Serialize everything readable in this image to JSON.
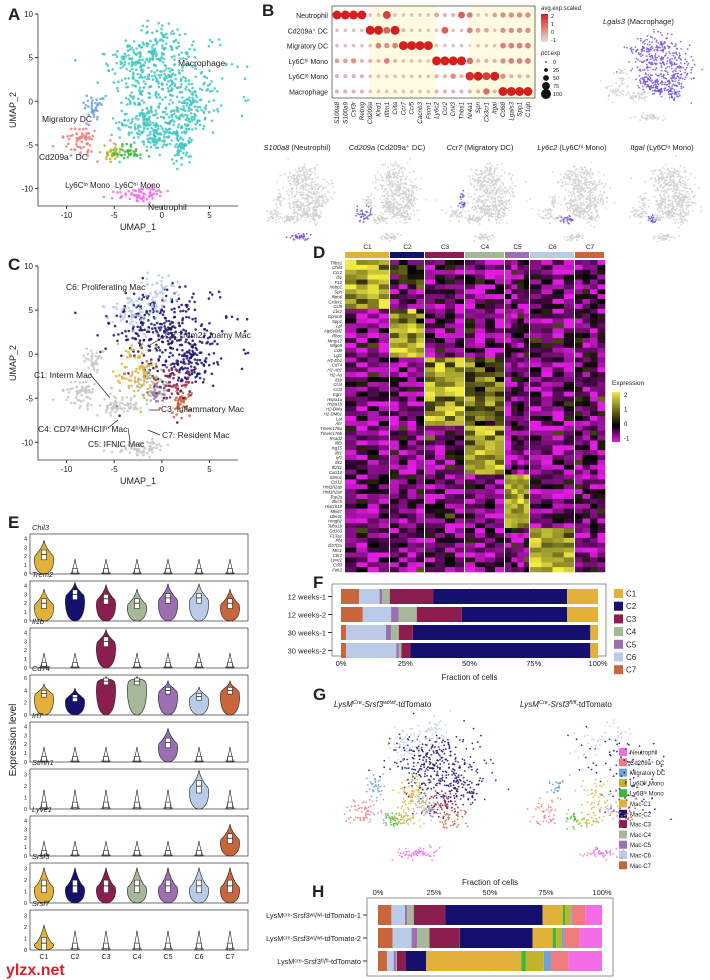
{
  "panel_letters": {
    "A": "A",
    "B": "B",
    "C": "C",
    "D": "D",
    "E": "E",
    "F": "F",
    "G": "G",
    "H": "H"
  },
  "panel_a": {
    "xlabel": "UMAP_1",
    "ylabel": "UMAP_2",
    "xticks": [
      "-10",
      "-5",
      "0",
      "5"
    ],
    "yticks": [
      "10",
      "5",
      "0",
      "-5",
      "-10"
    ],
    "labels": {
      "macrophage": "Macrophage",
      "migratory_dc": "Migratory DC",
      "cd209a_dc": "Cd209a⁺ DC",
      "ly6c_lo": "Ly6Cˡᵒ Mono",
      "ly6c_hi": "Ly6Cʰⁱ Mono",
      "neutrophil": "Neutrophil"
    }
  },
  "panel_b": {
    "rows": [
      "Neutrophil",
      "Cd209a⁺ DC",
      "Migratory DC",
      "Ly6Cʰⁱ Mono",
      "Ly6Cˡᵒ Mono",
      "Macrophage"
    ],
    "genes": [
      "S100a8",
      "S100a9",
      "Csf3r",
      "Retnlg",
      "Cd209a",
      "Klrd1",
      "Ifitm1",
      "Ciita",
      "Ccr7",
      "Ccl5",
      "Cacnb3",
      "Fscn1",
      "Ly6c2",
      "Ccr2",
      "Chil3",
      "Thbs1",
      "Nr4a1",
      "Spn",
      "Cx3cr1",
      "Itgal",
      "Cd68",
      "Lgals3",
      "Spp1",
      "C1qb"
    ],
    "avg_exp_scaled": [
      [
        2,
        2,
        2,
        2,
        -0.5,
        -0.5,
        1.5,
        -0.5,
        -0.5,
        -0.5,
        -0.5,
        -0.5,
        0,
        -0.3,
        -0.3,
        1,
        0.5,
        -0.5,
        -0.5,
        0,
        0.3,
        0.3,
        0.3,
        0.3
      ],
      [
        -0.5,
        -0.5,
        -0.5,
        -0.5,
        2,
        2,
        1,
        2,
        -0.3,
        -0.5,
        -0.5,
        -0.5,
        -0.5,
        1,
        -0.5,
        -0.5,
        0.5,
        0,
        0,
        -0.5,
        0.3,
        0.3,
        0.3,
        0.3
      ],
      [
        -0.5,
        -0.5,
        -0.5,
        -0.5,
        -0.5,
        0.5,
        0.3,
        0.5,
        2,
        2,
        2,
        2,
        -0.5,
        -0.5,
        -0.5,
        -0.5,
        -0.8,
        -0.5,
        -0.5,
        -0.5,
        0.5,
        0.5,
        0.5,
        0.5
      ],
      [
        0,
        0,
        0.3,
        -0.3,
        -0.3,
        -0.3,
        0.5,
        -0.3,
        -0.5,
        -0.5,
        -0.5,
        -0.5,
        2,
        2,
        2,
        2,
        0.8,
        -0.3,
        -0.3,
        -0.3,
        0.3,
        0.5,
        0.5,
        0.5
      ],
      [
        -0.3,
        -0.3,
        -0.3,
        -0.3,
        -0.5,
        -0.5,
        -0.5,
        -0.5,
        -0.5,
        -0.5,
        -0.5,
        -0.5,
        -0.3,
        -0.3,
        0.3,
        -0.3,
        1.8,
        2,
        1.5,
        2,
        0.3,
        -0.3,
        -0.3,
        -0.3
      ],
      [
        -0.3,
        -0.3,
        -0.3,
        -0.3,
        -0.5,
        -0.5,
        -0.5,
        -0.5,
        -0.5,
        -0.5,
        -0.5,
        -0.5,
        -0.3,
        -0.3,
        -0.3,
        -0.3,
        -0.3,
        -0.3,
        0.8,
        -0.3,
        2,
        2,
        2,
        2
      ]
    ],
    "legend_color_title": "avg.exp.scaled",
    "legend_color_ticks": [
      "2",
      "1",
      "0",
      "-1"
    ],
    "legend_size_title": "pct.exp",
    "legend_size_ticks": [
      "0",
      "25",
      "50",
      "75",
      "100"
    ],
    "colors": {
      "low": "#e6e0dc",
      "high": "#d4201c",
      "highlight_band": "#fffbe0"
    }
  },
  "feature_plots": [
    {
      "gene": "Lgals3",
      "cell": " (Macrophage)",
      "target": "mac"
    },
    {
      "gene": "S100a8",
      "cell": " (Neutrophil)",
      "target": "neu"
    },
    {
      "gene": "Cd209a",
      "cell": " (Cd209a⁺ DC)",
      "target": "cd209"
    },
    {
      "gene": "Ccr7",
      "cell": " (Migratory DC)",
      "target": "mig"
    },
    {
      "gene": "Ly6c2",
      "cell": " (Ly6Cʰⁱ Mono)",
      "target": "hi"
    },
    {
      "gene": "Itgal",
      "cell": " (Ly6Cˡᵒ Mono)",
      "target": "lo"
    }
  ],
  "panel_c": {
    "xlabel": "UMAP_1",
    "ylabel": "UMAP_2",
    "xticks": [
      "-10",
      "-5",
      "0",
      "5"
    ],
    "yticks": [
      "10",
      "5",
      "0",
      "-5",
      "-10"
    ],
    "labels": {
      "c6": "C6: Proliferating Mac",
      "c2": "C2:Trem2⁺ foamy Mac",
      "c1": "C1: Interm Mac",
      "c3": "C3: Inflammatory Mac",
      "c4": "C4: CD74ʰⁱMHCIIʰⁱ Mac",
      "c5": "C5: IFNIC Mac",
      "c7": "C7: Resident Mac"
    }
  },
  "clusters": [
    "C1",
    "C2",
    "C3",
    "C4",
    "C5",
    "C6",
    "C7"
  ],
  "cluster_colors": {
    "C1": "#e2b13a",
    "C2": "#15106e",
    "C3": "#8b1e4f",
    "C4": "#a7b89a",
    "C5": "#9b6fb0",
    "C6": "#b9cbe9",
    "C7": "#c9653a"
  },
  "panel_d": {
    "genes": [
      "Thbs1",
      "Chil3",
      "Ccr2",
      "Ifi1",
      "F10",
      "Hebp1",
      "Spn",
      "Ifitm6",
      "Cx3cr1",
      "Ccl9",
      "Cbr2",
      "Gpnmb",
      "Spp1",
      "Lpl",
      "Atp6v0d2",
      "Rhoc",
      "Mmp12",
      "Mfge8",
      "Cd9",
      "Lgi1",
      "H2-Eb1",
      "Cd74",
      "H2-Ab1",
      "H2-Aa",
      "Il1b",
      "Ccl4",
      "Ccl3",
      "Egr1",
      "Hspa1a",
      "Hspa1b",
      "H2-DMa",
      "H2-DMb1",
      "Lat",
      "Ahr",
      "Tmem176a",
      "Tmem176b",
      "Rsad2",
      "Ifit3",
      "Isg15",
      "Ifit1",
      "Irf7",
      "Ifit2",
      "Ifi211",
      "Cxcl10",
      "Stmn1",
      "Ccl12",
      "Hist1h2ap",
      "Hist1h2ae",
      "Top2a",
      "Birc5",
      "Hist1h1b",
      "Mki67",
      "Ube2c",
      "Hmgb2",
      "Tuba1b",
      "Cd163",
      "F13a1",
      "Pf4",
      "Ifi27l2a",
      "Mrc1",
      "Cbr2",
      "Lyve1",
      "Cd5l",
      "Folr2"
    ],
    "legend_title": "Expression",
    "legend_ticks": [
      "2",
      "1",
      "0",
      "-1"
    ],
    "colors": {
      "low": "#e31ce3",
      "mid": "#000000",
      "high": "#f2ec42"
    }
  },
  "panel_e": {
    "ylabel": "Expression level",
    "genes": [
      {
        "name": "Chil3",
        "ticks": [
          "4",
          "3",
          "2",
          "1",
          "0"
        ],
        "max": 4.5,
        "levels": [
          2.2,
          0.1,
          0.1,
          0.1,
          0.1,
          0.1,
          0.1
        ]
      },
      {
        "name": "Trem2",
        "ticks": [
          "4",
          "3",
          "2",
          "1",
          "0"
        ],
        "max": 4.5,
        "levels": [
          2,
          3,
          2.5,
          2,
          2.6,
          2.6,
          2
        ]
      },
      {
        "name": "Il1b",
        "ticks": [
          "4",
          "3",
          "2",
          "1",
          "0"
        ],
        "max": 4.5,
        "levels": [
          0.1,
          0.1,
          3,
          0.1,
          0.1,
          0.1,
          0.1
        ]
      },
      {
        "name": "Cd74",
        "ticks": [
          "6",
          "4",
          "2",
          "0"
        ],
        "max": 6.5,
        "levels": [
          3.5,
          2.8,
          5.5,
          5.5,
          4,
          3,
          4
        ]
      },
      {
        "name": "Irf7",
        "ticks": [
          "4",
          "3",
          "2",
          "1",
          "0"
        ],
        "max": 4.5,
        "levels": [
          0.1,
          0.1,
          0.1,
          0.1,
          2.2,
          0.1,
          0.1
        ]
      },
      {
        "name": "Stmn1",
        "ticks": [
          "3",
          "2",
          "1",
          "0"
        ],
        "max": 3.5,
        "levels": [
          0.1,
          0.1,
          0.1,
          0.1,
          0.1,
          2,
          0.1
        ]
      },
      {
        "name": "Lyve1",
        "ticks": [
          "4",
          "3",
          "2",
          "1",
          "0"
        ],
        "max": 4.5,
        "levels": [
          0.1,
          0.1,
          0.1,
          0.1,
          0.1,
          0.1,
          2
        ]
      },
      {
        "name": "Srsf3",
        "ticks": [
          "3",
          "2",
          "1",
          "0"
        ],
        "max": 3.5,
        "levels": [
          1.5,
          1.5,
          1.5,
          1.5,
          1.5,
          1.5,
          1.5
        ]
      },
      {
        "name": "Srsf7",
        "ticks": [
          "3",
          "2",
          "1",
          "0"
        ],
        "max": 3.5,
        "levels": [
          0.6,
          0.1,
          0.1,
          0.1,
          0.1,
          0.1,
          0.1
        ]
      }
    ]
  },
  "chart_data": [
    {
      "type": "bar",
      "orientation": "horizontal",
      "stacked": true,
      "categories": [
        "12 weeks-1",
        "12 weeks-2",
        "30 weeks-1",
        "30 weeks-2"
      ],
      "xlabel": "Fraction of cells",
      "xlim": [
        0,
        100
      ],
      "xticks": [
        "0%",
        "25%",
        "50%",
        "75%",
        "100%"
      ],
      "legend": "right",
      "series": [
        {
          "name": "C7",
          "color": "#c9653a",
          "values": [
            7,
            8.5,
            2,
            2
          ]
        },
        {
          "name": "C6",
          "color": "#b9cbe9",
          "values": [
            8,
            11,
            15.5,
            19.5
          ]
        },
        {
          "name": "C5",
          "color": "#9b6fb0",
          "values": [
            1,
            3,
            2,
            1
          ]
        },
        {
          "name": "C4",
          "color": "#a7b89a",
          "values": [
            3,
            7,
            3,
            1
          ]
        },
        {
          "name": "C3",
          "color": "#8b1e4f",
          "values": [
            17,
            17.5,
            5.5,
            3.5
          ]
        },
        {
          "name": "C2",
          "color": "#15106e",
          "values": [
            52,
            41,
            69,
            70
          ]
        },
        {
          "name": "C1",
          "color": "#e2b13a",
          "values": [
            12,
            12,
            3,
            3
          ]
        }
      ],
      "legend_order": [
        "C1",
        "C2",
        "C3",
        "C4",
        "C5",
        "C6",
        "C7"
      ]
    },
    {
      "type": "bar",
      "orientation": "horizontal",
      "stacked": true,
      "categories": [
        "LysMᶜʳᵉ-Srsf3ʷᵗ/ʷᵗ-tdTomato-1",
        "LysMᶜʳᵉ-Srsf3ʷᵗ/ʷᵗ-tdTomato-2",
        "LysMᶜʳᵉ-Srsf3ᶠˡ/ᶠˡ-tdTomato"
      ],
      "xlabel": "Fraction of cells",
      "xlim": [
        0,
        100
      ],
      "xticks": [
        "0%",
        "25%",
        "50%",
        "75%",
        "100%"
      ],
      "legend": "right",
      "series": [
        {
          "name": "Mac-C7",
          "color": "#c9653a",
          "values": [
            6,
            6.5,
            4
          ]
        },
        {
          "name": "Mac-C6",
          "color": "#b9cbe9",
          "values": [
            6,
            8.5,
            3
          ]
        },
        {
          "name": "Mac-C5",
          "color": "#9b6fb0",
          "values": [
            1,
            2.5,
            1
          ]
        },
        {
          "name": "Mac-C4",
          "color": "#a7b89a",
          "values": [
            3,
            5.5,
            0.5
          ]
        },
        {
          "name": "Mac-C3",
          "color": "#8b1e4f",
          "values": [
            14,
            13.5,
            4
          ]
        },
        {
          "name": "Mac-C2",
          "color": "#15106e",
          "values": [
            43.5,
            32.5,
            9
          ]
        },
        {
          "name": "Mac-C1",
          "color": "#e2b13a",
          "values": [
            9,
            9,
            42.5
          ]
        },
        {
          "name": "Ly6Cˡᵒ Mono",
          "color": "#3bb83b",
          "values": [
            1,
            1.5,
            2
          ]
        },
        {
          "name": "Ly6Cʰⁱ Mono",
          "color": "#c0b52a",
          "values": [
            2.5,
            2.5,
            8
          ]
        },
        {
          "name": "Migratory DC",
          "color": "#6aa4dc",
          "values": [
            0.5,
            1,
            3
          ]
        },
        {
          "name": "Cd209a⁺ DC",
          "color": "#f07d7d",
          "values": [
            6,
            7,
            8
          ]
        },
        {
          "name": "Neutrophil",
          "color": "#f46ce6",
          "values": [
            7.5,
            10,
            15
          ]
        }
      ],
      "legend_order": [
        "Neutrophil",
        "Cd209a⁺ DC",
        "Migratory DC",
        "Ly6Cʰⁱ Mono",
        "Ly6Cˡᵒ Mono",
        "Mac-C1",
        "Mac-C2",
        "Mac-C3",
        "Mac-C4",
        "Mac-C5",
        "Mac-C6",
        "Mac-C7"
      ]
    }
  ],
  "panel_g": {
    "title_wt": {
      "pre": "LysM",
      "sup1": "Cre",
      "mid": "-Srsf3",
      "sup2": "wt/wt",
      "post": "-tdTomato"
    },
    "title_fl": {
      "pre": "LysM",
      "sup1": "Cre",
      "mid": "-Srsf3",
      "sup2": "fl/fl",
      "post": "-tdTomato"
    }
  },
  "watermark": "ylzx.net"
}
